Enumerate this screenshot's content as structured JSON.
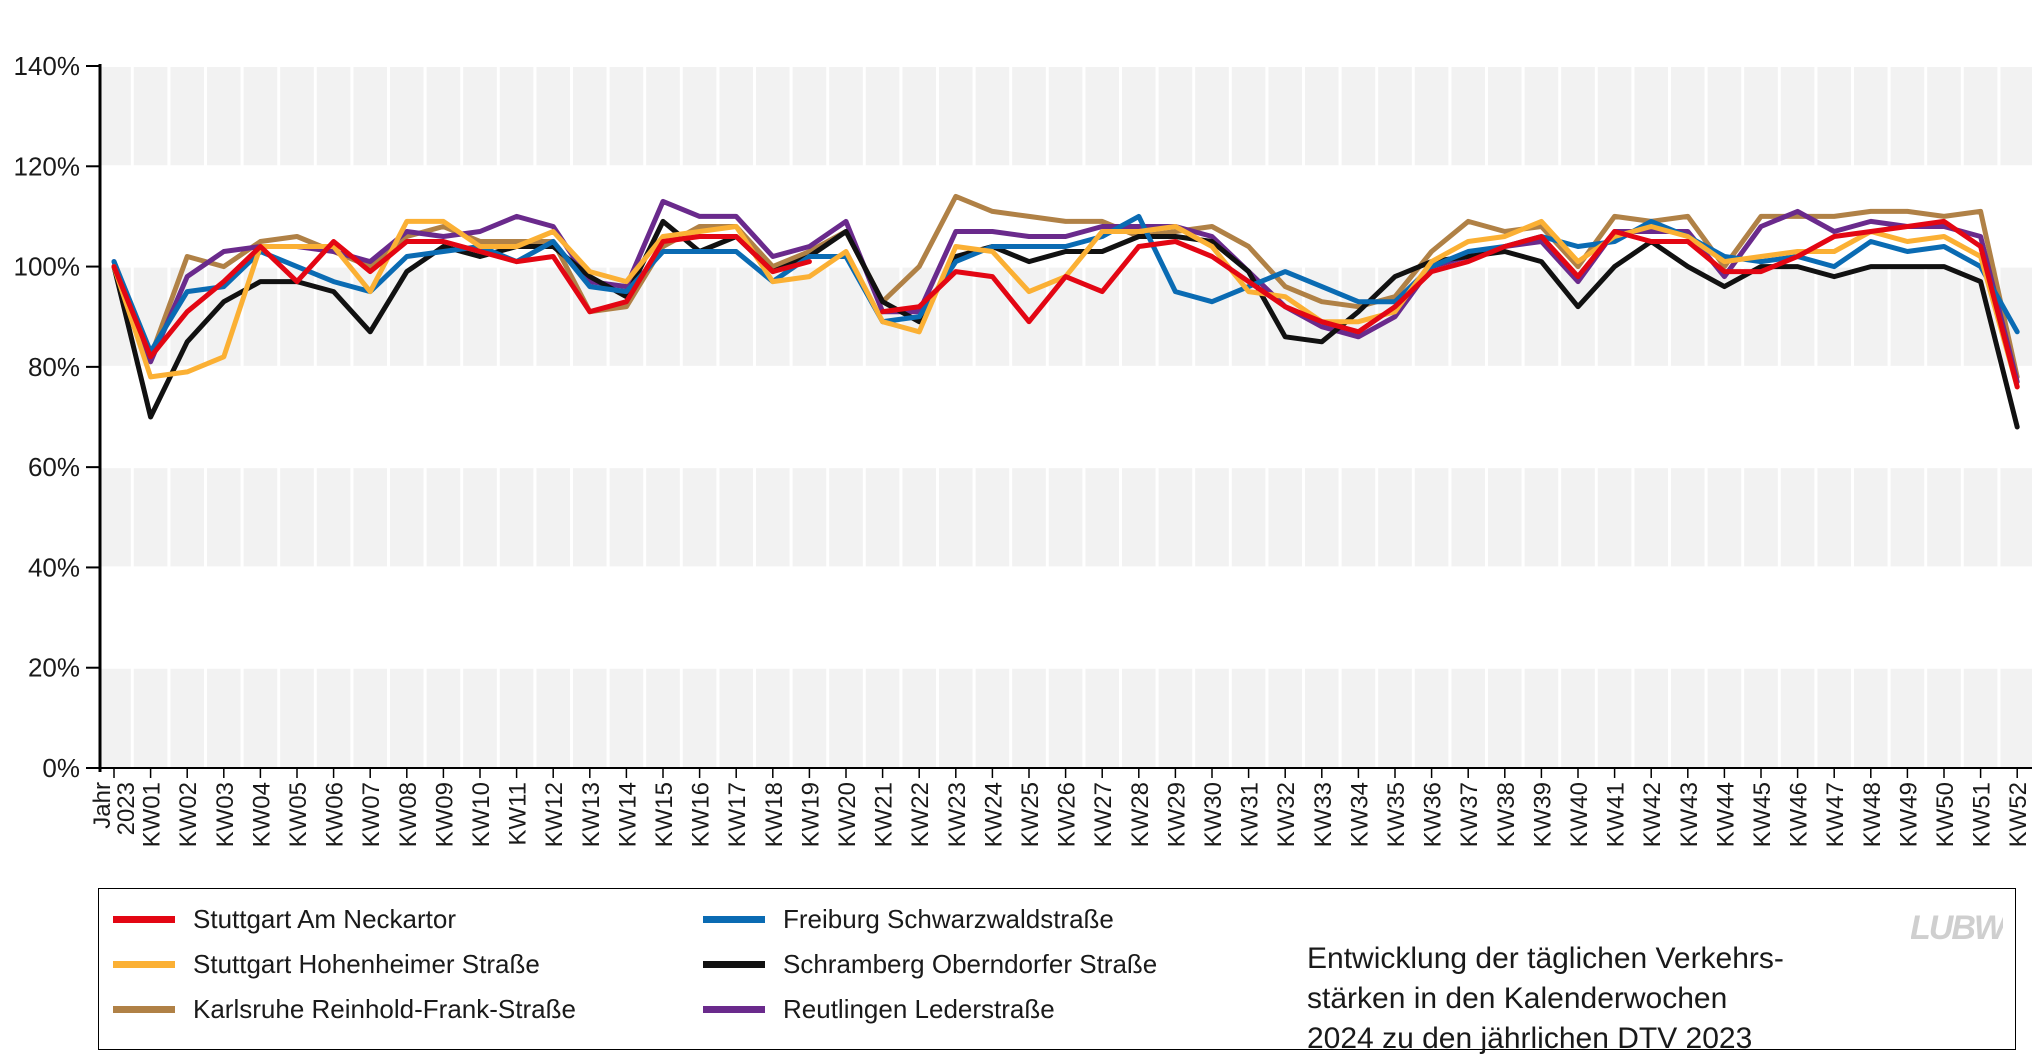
{
  "chart_data": {
    "type": "line",
    "categories": [
      "Jahr 2023",
      "KW01",
      "KW02",
      "KW03",
      "KW04",
      "KW05",
      "KW06",
      "KW07",
      "KW08",
      "KW09",
      "KW10",
      "KW11",
      "KW12",
      "KW13",
      "KW14",
      "KW15",
      "KW16",
      "KW17",
      "KW18",
      "KW19",
      "KW20",
      "KW21",
      "KW22",
      "KW23",
      "KW24",
      "KW25",
      "KW26",
      "KW27",
      "KW28",
      "KW29",
      "KW30",
      "KW31",
      "KW32",
      "KW33",
      "KW34",
      "KW35",
      "KW36",
      "KW37",
      "KW38",
      "KW39",
      "KW40",
      "KW41",
      "KW42",
      "KW43",
      "KW44",
      "KW45",
      "KW46",
      "KW47",
      "KW48",
      "KW49",
      "KW50",
      "KW51",
      "KW52"
    ],
    "y_ticks": [
      "0%",
      "20%",
      "40%",
      "60%",
      "80%",
      "100%",
      "120%",
      "140%"
    ],
    "ylim": [
      0,
      140
    ],
    "grid": true,
    "legend_position": "bottom",
    "series": [
      {
        "name": "Stuttgart Am Neckartor",
        "color": "#e30613",
        "values": [
          100,
          82,
          91,
          97,
          104,
          97,
          105,
          99,
          105,
          105,
          103,
          101,
          102,
          91,
          93,
          105,
          106,
          106,
          99,
          101,
          null,
          91,
          92,
          99,
          98,
          89,
          98,
          95,
          104,
          105,
          102,
          97,
          92,
          89,
          87,
          92,
          99,
          101,
          104,
          106,
          98,
          107,
          105,
          105,
          99,
          99,
          102,
          106,
          107,
          108,
          109,
          104,
          76
        ]
      },
      {
        "name": "Stuttgart Hohenheimer Straße",
        "color": "#fbb034",
        "values": [
          100,
          78,
          79,
          82,
          104,
          104,
          104,
          95,
          109,
          109,
          104,
          104,
          107,
          99,
          97,
          106,
          107,
          108,
          97,
          98,
          103,
          89,
          87,
          104,
          103,
          95,
          98,
          107,
          107,
          108,
          104,
          95,
          94,
          89,
          89,
          91,
          101,
          105,
          106,
          109,
          101,
          106,
          108,
          106,
          101,
          102,
          103,
          103,
          107,
          105,
          106,
          102,
          76
        ]
      },
      {
        "name": "Karlsruhe Reinhold-Frank-Straße",
        "color": "#b08146",
        "values": [
          100,
          82,
          102,
          100,
          105,
          106,
          103,
          100,
          106,
          108,
          105,
          105,
          105,
          91,
          92,
          104,
          108,
          108,
          100,
          103,
          107,
          93,
          100,
          114,
          111,
          110,
          109,
          109,
          106,
          107,
          108,
          104,
          96,
          93,
          92,
          94,
          103,
          109,
          107,
          108,
          100,
          110,
          109,
          110,
          100,
          110,
          110,
          110,
          111,
          111,
          110,
          111,
          78
        ]
      },
      {
        "name": "Freiburg Schwarzwaldstraße",
        "color": "#0a6bb3",
        "values": [
          101,
          83,
          95,
          96,
          103,
          100,
          97,
          95,
          102,
          103,
          104,
          101,
          105,
          96,
          95,
          103,
          103,
          103,
          97,
          102,
          102,
          89,
          90,
          101,
          104,
          104,
          104,
          106,
          110,
          95,
          93,
          96,
          99,
          96,
          93,
          93,
          100,
          103,
          104,
          106,
          104,
          105,
          109,
          106,
          102,
          101,
          102,
          100,
          105,
          103,
          104,
          100,
          87
        ]
      },
      {
        "name": "Schramberg Oberndorfer Straße",
        "color": "#111111",
        "values": [
          100,
          70,
          85,
          93,
          97,
          97,
          95,
          87,
          99,
          104,
          102,
          104,
          104,
          98,
          94,
          109,
          103,
          106,
          99,
          102,
          107,
          93,
          89,
          102,
          104,
          101,
          103,
          103,
          106,
          106,
          105,
          99,
          86,
          85,
          91,
          98,
          101,
          102,
          103,
          101,
          92,
          100,
          105,
          100,
          96,
          100,
          100,
          98,
          100,
          100,
          100,
          97,
          68
        ]
      },
      {
        "name": "Reutlingen Lederstraße",
        "color": "#6a2a8c",
        "values": [
          101,
          81,
          98,
          103,
          104,
          104,
          103,
          101,
          107,
          106,
          107,
          110,
          108,
          97,
          96,
          113,
          110,
          110,
          102,
          104,
          109,
          91,
          91,
          107,
          107,
          106,
          106,
          108,
          108,
          108,
          106,
          99,
          92,
          88,
          86,
          90,
          100,
          102,
          104,
          105,
          97,
          107,
          107,
          107,
          98,
          108,
          111,
          107,
          109,
          108,
          108,
          106,
          77
        ]
      }
    ]
  },
  "caption": {
    "lines": [
      "Entwicklung der täglichen Verkehrs-",
      "stärken in den Kalenderwochen",
      "2024 zu den jährlichen DTV 2023"
    ]
  },
  "logo": {
    "text": "LUBW"
  }
}
